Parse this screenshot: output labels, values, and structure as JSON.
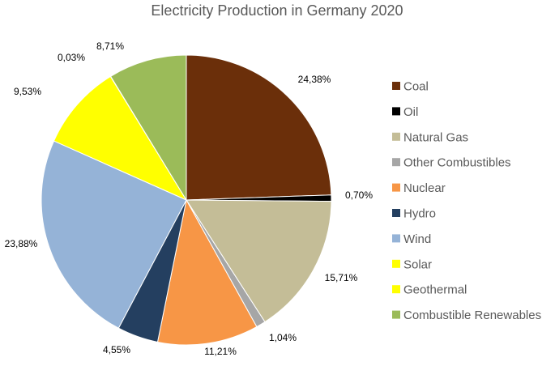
{
  "chart_data": {
    "type": "pie",
    "title": "Electricity Production in Germany 2020",
    "legend_position": "right",
    "slices": [
      {
        "label": "Coal",
        "value": 24.38,
        "display": "24,38%",
        "color": "#6B2F0A"
      },
      {
        "label": "Oil",
        "value": 0.7,
        "display": "0,70%",
        "color": "#000000"
      },
      {
        "label": "Natural Gas",
        "value": 15.71,
        "display": "15,71%",
        "color": "#C4BD97"
      },
      {
        "label": "Other Combustibles",
        "value": 1.04,
        "display": "1,04%",
        "color": "#A6A6A6"
      },
      {
        "label": "Nuclear",
        "value": 11.21,
        "display": "11,21%",
        "color": "#F79646"
      },
      {
        "label": "Hydro",
        "value": 4.55,
        "display": "4,55%",
        "color": "#243F60"
      },
      {
        "label": "Wind",
        "value": 23.88,
        "display": "23,88%",
        "color": "#95B3D7"
      },
      {
        "label": "Solar",
        "value": 9.53,
        "display": "9,53%",
        "color": "#FFFF00"
      },
      {
        "label": "Geothermal",
        "value": 0.03,
        "display": "0,03%",
        "color": "#FFFF00"
      },
      {
        "label": "Combustible Renewables",
        "value": 8.71,
        "display": "8,71%",
        "color": "#9BBB59"
      }
    ]
  }
}
